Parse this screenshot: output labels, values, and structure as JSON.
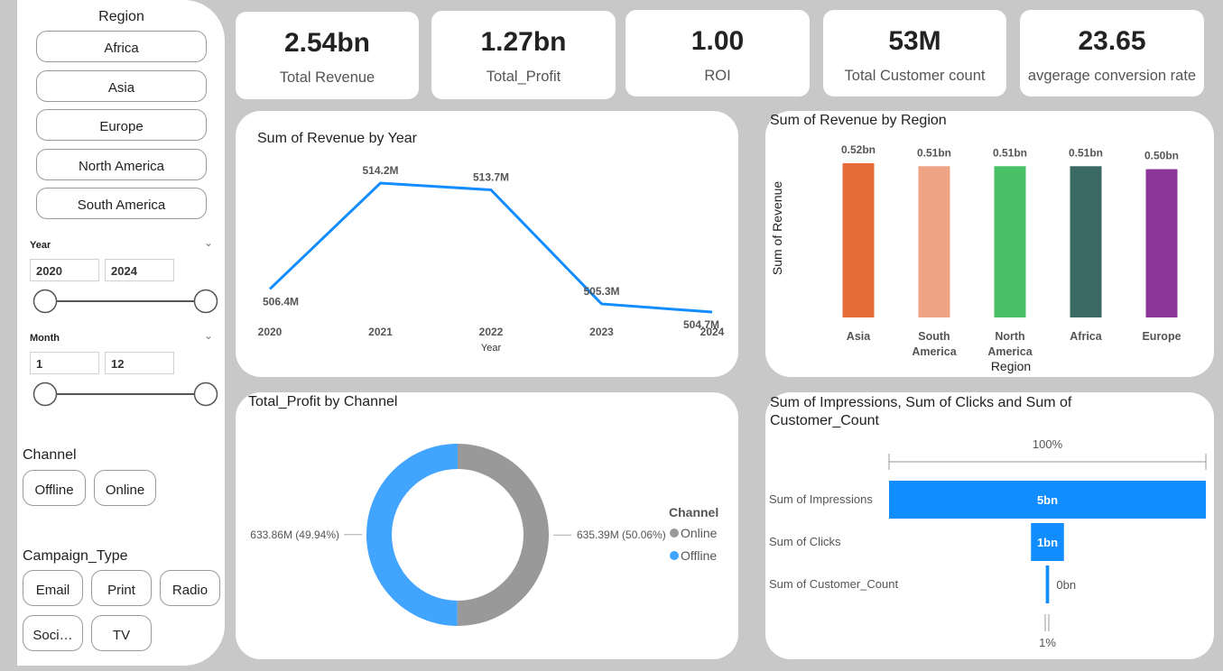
{
  "slicers": {
    "region": {
      "title": "Region",
      "items": [
        "Africa",
        "Asia",
        "Europe",
        "North America",
        "South America"
      ]
    },
    "year": {
      "title": "Year",
      "from": "2020",
      "to": "2024"
    },
    "month": {
      "title": "Month",
      "from": "1",
      "to": "12"
    },
    "channel": {
      "title": "Channel",
      "items": [
        "Offline",
        "Online"
      ]
    },
    "campaign_type": {
      "title": "Campaign_Type",
      "items": [
        "Email",
        "Print",
        "Radio",
        "Soci…",
        "TV"
      ]
    }
  },
  "kpis": [
    {
      "value": "2.54bn",
      "label": "Total Revenue"
    },
    {
      "value": "1.27bn",
      "label": "Total_Profit"
    },
    {
      "value": "1.00",
      "label": "ROI"
    },
    {
      "value": "53M",
      "label": "Total Customer count"
    },
    {
      "value": "23.65",
      "label": "avgerage conversion rate"
    }
  ],
  "chart_data": [
    {
      "type": "line",
      "title": "Sum of Revenue by Year",
      "x_label": "Year",
      "categories": [
        "2020",
        "2021",
        "2022",
        "2023",
        "2024"
      ],
      "values": [
        506.4,
        514.2,
        513.7,
        505.3,
        504.7
      ],
      "value_labels": [
        "506.4M",
        "514.2M",
        "513.7M",
        "505.3M",
        "504.7M"
      ],
      "color": "#118dff"
    },
    {
      "type": "bar",
      "title": "Sum of Revenue by Region",
      "x_label": "Region",
      "y_label": "Sum of Revenue",
      "categories": [
        "Asia",
        "South America",
        "North America",
        "Africa",
        "Europe"
      ],
      "values": [
        0.52,
        0.51,
        0.51,
        0.51,
        0.5
      ],
      "value_labels": [
        "0.52bn",
        "0.51bn",
        "0.51bn",
        "0.51bn",
        "0.50bn"
      ],
      "colors": [
        "#e66c37",
        "#eea385",
        "#49bf66",
        "#3b6964",
        "#8a3597"
      ]
    },
    {
      "type": "donut",
      "title": "Total_Profit by Channel",
      "legend_title": "Channel",
      "categories": [
        "Online",
        "Offline"
      ],
      "values": [
        635.39,
        633.86
      ],
      "value_labels": [
        "635.39M (50.06%)",
        "633.86M (49.94%)"
      ],
      "colors": [
        "#999999",
        "#41a4ff"
      ]
    },
    {
      "type": "funnel",
      "title": "Sum of Impressions, Sum of Clicks and Sum of Customer_Count",
      "categories": [
        "Sum of Impressions",
        "Sum of Clicks",
        "Sum of Customer_Count"
      ],
      "values": [
        5,
        0.52,
        0.053
      ],
      "value_labels": [
        "5bn",
        "1bn",
        "0bn"
      ],
      "top_label": "100%",
      "bottom_label": "1%",
      "color": "#118dff"
    }
  ]
}
